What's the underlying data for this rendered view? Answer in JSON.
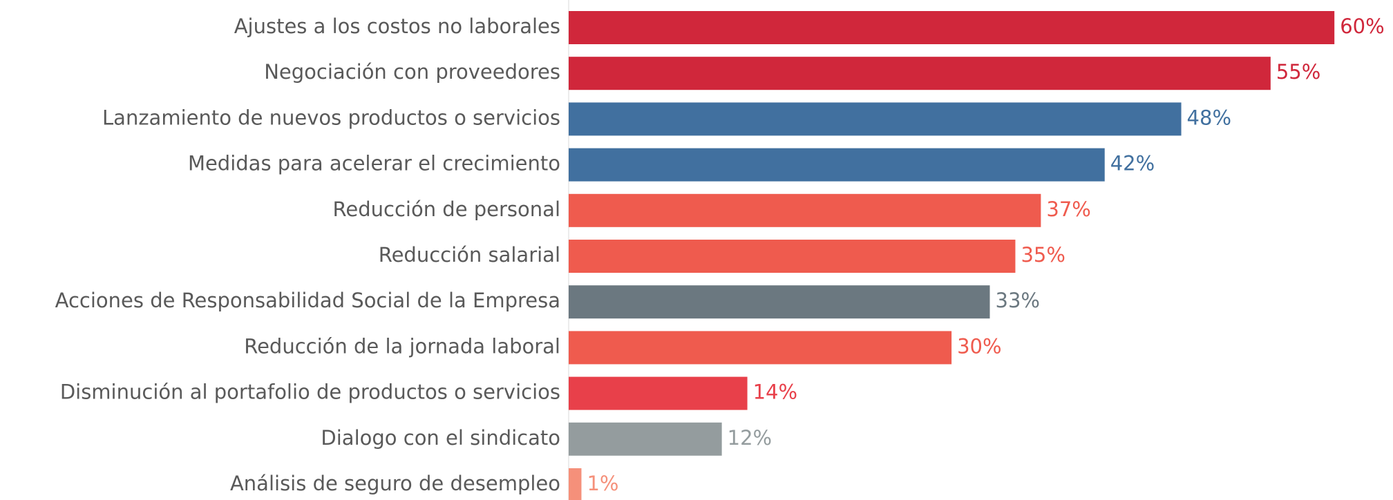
{
  "chart_data": {
    "type": "barh",
    "categories": [
      "Ajustes a los costos no laborales",
      "Negociación con proveedores",
      "Lanzamiento de nuevos productos o servicios",
      "Medidas para acelerar el crecimiento",
      "Reducción de personal",
      "Reducción salarial",
      "Acciones de Responsabilidad Social de la Empresa",
      "Reducción de la jornada laboral",
      "Disminución al portafolio de productos o servicios",
      "Dialogo con el sindicato",
      "Análisis de seguro de desempleo"
    ],
    "values": [
      60,
      55,
      48,
      42,
      37,
      35,
      33,
      30,
      14,
      12,
      1
    ],
    "value_labels": [
      "60%",
      "55%",
      "48%",
      "42%",
      "37%",
      "35%",
      "33%",
      "30%",
      "14%",
      "12%",
      "1%"
    ],
    "colors": [
      "#d0273b",
      "#d0273b",
      "#41709f",
      "#41709f",
      "#ef5b4e",
      "#ef5b4e",
      "#6b7880",
      "#ef5b4e",
      "#e8404a",
      "#949c9e",
      "#f5907a"
    ]
  }
}
